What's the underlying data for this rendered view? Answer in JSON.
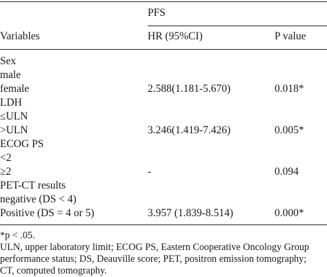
{
  "table": {
    "group_header": "PFS",
    "columns": {
      "variables": "Variables",
      "hr": "HR (95%CI)",
      "p": "P value"
    },
    "rows": [
      {
        "variable": "Sex",
        "hr": "",
        "p": ""
      },
      {
        "variable": "male",
        "hr": "",
        "p": ""
      },
      {
        "variable": "female",
        "hr": "2.588(1.181-5.670)",
        "p": "0.018*"
      },
      {
        "variable": "LDH",
        "hr": "",
        "p": ""
      },
      {
        "variable": "≤ULN",
        "hr": "",
        "p": ""
      },
      {
        "variable": ">ULN",
        "hr": "3.246(1.419-7.426)",
        "p": "0.005*"
      },
      {
        "variable": "ECOG PS",
        "hr": "",
        "p": ""
      },
      {
        "variable": "<2",
        "hr": "",
        "p": ""
      },
      {
        "variable": "≥2",
        "hr": "-",
        "p": "0.094"
      },
      {
        "variable": "PET-CT results",
        "hr": "",
        "p": ""
      },
      {
        "variable": "negative (DS < 4)",
        "hr": "",
        "p": ""
      },
      {
        "variable": "Positive (DS = 4 or 5)",
        "hr": "3.957 (1.839-8.514)",
        "p": "0.000*"
      }
    ]
  },
  "footnotes": {
    "significance": "*p < .05.",
    "abbreviations": [
      "ULN, upper laboratory limit; ECOG PS, Eastern Cooperative Oncology Group",
      "performance status; DS, Deauville score; PET, positron emission tomography;",
      "CT, computed tomography."
    ]
  }
}
